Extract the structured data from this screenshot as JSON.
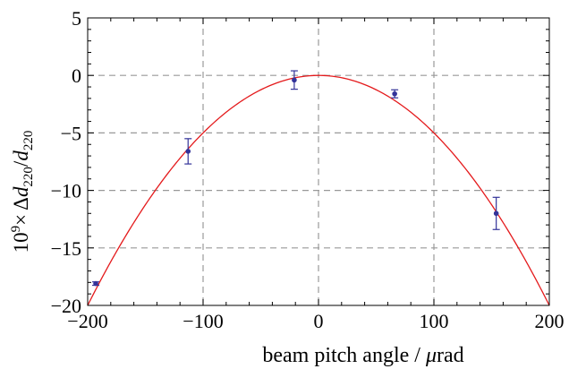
{
  "chart_data": {
    "type": "scatter",
    "xlabel_text": "beam pitch angle / ",
    "xlabel_unit_symbol": "μ",
    "xlabel_unit": "rad",
    "ylabel": {
      "base": "10",
      "exp": "9",
      "times": "×",
      "delta": "Δ",
      "d": "d",
      "sub": "220",
      "slash": "/"
    },
    "xlim": [
      -200,
      200
    ],
    "ylim": [
      -20,
      5
    ],
    "xticks": [
      -200,
      -100,
      0,
      100,
      200
    ],
    "yticks": [
      5,
      0,
      -5,
      -10,
      -15,
      -20
    ],
    "grid": true,
    "series": [
      {
        "kind": "points_with_errorbars",
        "color": "#333399",
        "points": [
          {
            "x": -193,
            "y": -18.1,
            "err": 0.15
          },
          {
            "x": -113,
            "y": -6.6,
            "err": 1.1
          },
          {
            "x": -21,
            "y": -0.4,
            "err": 0.8
          },
          {
            "x": 66,
            "y": -1.6,
            "err": 0.35
          },
          {
            "x": 154,
            "y": -12.0,
            "err": 1.4
          }
        ]
      },
      {
        "kind": "fit_curve",
        "color": "#e41a1c",
        "model": "y = -0.0005 * x^2",
        "coef": -0.0005
      }
    ]
  }
}
